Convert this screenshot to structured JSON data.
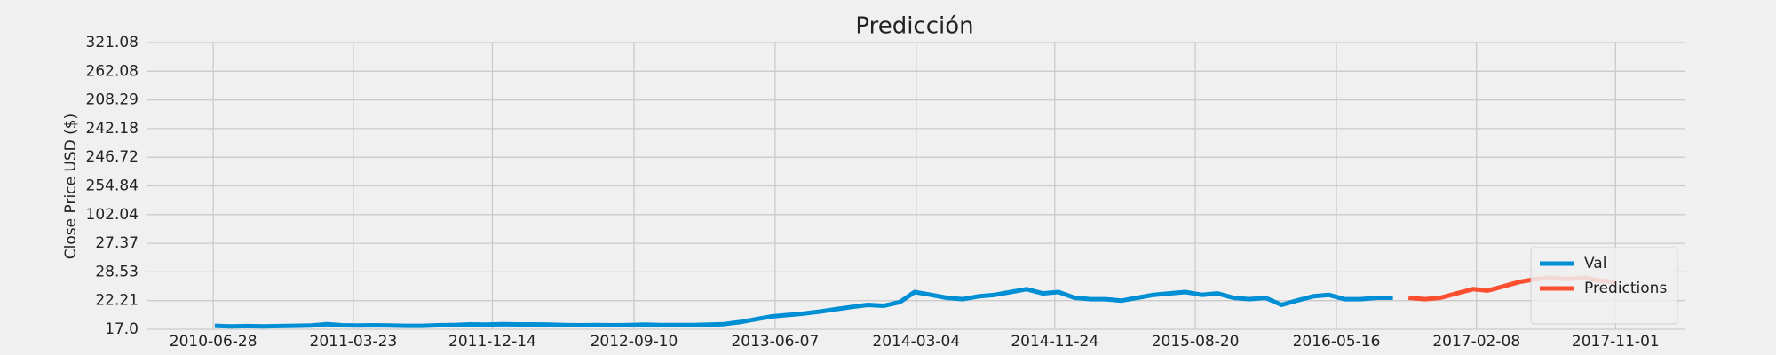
{
  "chart_data": {
    "type": "line",
    "title": "Predicción",
    "ylabel": "Close Price USD ($)",
    "y_categories": [
      "17.0",
      "22.21",
      "28.53",
      "27.37",
      "102.04",
      "254.84",
      "246.72",
      "242.18",
      "208.29",
      "262.08",
      "321.08"
    ],
    "xlim": [
      "2010-02-22",
      "2018-03-13"
    ],
    "xticks": [
      "2010-06-28",
      "2011-03-23",
      "2011-12-14",
      "2012-09-10",
      "2013-06-07",
      "2014-03-04",
      "2014-11-24",
      "2015-08-20",
      "2016-05-16",
      "2017-02-08",
      "2017-11-01"
    ],
    "grid": true,
    "legend": "lower right",
    "series": [
      {
        "name": "Val",
        "color": "#008fd5",
        "x": [
          "2010-07-01",
          "2010-08-01",
          "2010-09-01",
          "2010-10-01",
          "2010-11-01",
          "2010-12-01",
          "2011-01-01",
          "2011-02-01",
          "2011-03-01",
          "2011-04-01",
          "2011-05-01",
          "2011-06-01",
          "2011-07-01",
          "2011-08-01",
          "2011-09-01",
          "2011-10-01",
          "2011-11-01",
          "2011-12-01",
          "2012-01-01",
          "2012-02-01",
          "2012-03-01",
          "2012-04-01",
          "2012-05-01",
          "2012-06-01",
          "2012-07-01",
          "2012-08-01",
          "2012-09-01",
          "2012-10-01",
          "2012-11-01",
          "2012-12-01",
          "2013-01-01",
          "2013-02-01",
          "2013-03-01",
          "2013-04-01",
          "2013-05-01",
          "2013-06-01",
          "2013-07-01",
          "2013-08-01",
          "2013-09-01",
          "2013-10-01",
          "2013-11-01",
          "2013-12-01",
          "2014-01-01",
          "2014-02-01",
          "2014-03-01",
          "2014-04-01",
          "2014-05-01",
          "2014-06-01",
          "2014-07-01",
          "2014-08-01",
          "2014-09-01",
          "2014-10-01",
          "2014-11-01",
          "2014-12-01",
          "2015-01-01",
          "2015-02-01",
          "2015-03-01",
          "2015-04-01",
          "2015-05-01",
          "2015-06-01",
          "2015-07-01",
          "2015-08-01",
          "2015-09-01",
          "2015-10-01",
          "2015-11-01",
          "2015-12-01",
          "2016-01-01",
          "2016-02-01",
          "2016-03-01",
          "2016-04-01",
          "2016-05-01",
          "2016-06-01",
          "2016-07-01",
          "2016-08-01",
          "2016-09-01"
        ],
        "values": [
          0.12,
          0.1,
          0.11,
          0.1,
          0.11,
          0.12,
          0.13,
          0.18,
          0.14,
          0.13,
          0.14,
          0.13,
          0.12,
          0.12,
          0.14,
          0.15,
          0.17,
          0.16,
          0.18,
          0.17,
          0.17,
          0.16,
          0.15,
          0.14,
          0.15,
          0.14,
          0.15,
          0.16,
          0.15,
          0.15,
          0.15,
          0.16,
          0.18,
          0.25,
          0.35,
          0.45,
          0.5,
          0.55,
          0.62,
          0.7,
          0.78,
          0.85,
          0.82,
          0.95,
          1.3,
          1.2,
          1.1,
          1.05,
          1.15,
          1.2,
          1.3,
          1.4,
          1.25,
          1.3,
          1.1,
          1.05,
          1.05,
          1.0,
          1.1,
          1.2,
          1.25,
          1.3,
          1.2,
          1.25,
          1.1,
          1.05,
          1.1,
          0.85,
          1.0,
          1.15,
          1.2,
          1.05,
          1.05,
          1.1,
          1.1
        ]
      },
      {
        "name": "Predictions",
        "color": "#fc4f30",
        "x": [
          "2016-10-01",
          "2016-11-01",
          "2016-12-01",
          "2017-01-01",
          "2017-02-01",
          "2017-03-01",
          "2017-04-01",
          "2017-05-01",
          "2017-06-01",
          "2017-07-01",
          "2017-08-01",
          "2017-09-01",
          "2017-10-01",
          "2017-11-01"
        ],
        "values": [
          1.1,
          1.05,
          1.1,
          1.25,
          1.4,
          1.35,
          1.5,
          1.65,
          1.75,
          1.8,
          1.75,
          1.8,
          1.7,
          1.65
        ]
      }
    ]
  }
}
